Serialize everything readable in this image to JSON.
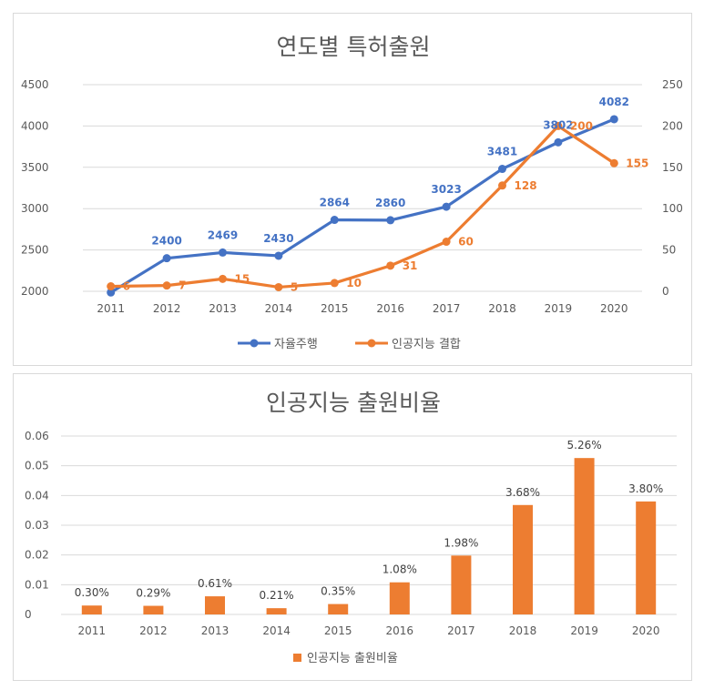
{
  "colors": {
    "blue": "#4472C4",
    "orange": "#ED7D31",
    "grid": "#d9d9d9",
    "text": "#595959"
  },
  "chart_data": [
    {
      "type": "line",
      "title": "연도별 특허출원",
      "categories": [
        "2011",
        "2012",
        "2013",
        "2014",
        "2015",
        "2016",
        "2017",
        "2018",
        "2019",
        "2020"
      ],
      "left_axis": {
        "ylim": [
          2000,
          4500
        ],
        "ticks": [
          "2000",
          "2500",
          "3000",
          "3500",
          "4000",
          "4500"
        ]
      },
      "right_axis": {
        "ylim": [
          0,
          250
        ],
        "ticks": [
          "0",
          "50",
          "100",
          "150",
          "200",
          "250"
        ]
      },
      "series": [
        {
          "name": "자율주행",
          "axis": "left",
          "color": "#4472C4",
          "values": [
            1986,
            2400,
            2469,
            2430,
            2864,
            2860,
            3023,
            3481,
            3802,
            4082
          ],
          "labels": [
            "",
            "2400",
            "2469",
            "2430",
            "2864",
            "2860",
            "3023",
            "3481",
            "3802",
            "4082"
          ]
        },
        {
          "name": "인공지능 결합",
          "axis": "right",
          "color": "#ED7D31",
          "values": [
            6,
            7,
            15,
            5,
            10,
            31,
            60,
            128,
            200,
            155
          ],
          "labels": [
            "6",
            "7",
            "15",
            "5",
            "10",
            "31",
            "60",
            "128",
            "200",
            "155"
          ]
        }
      ],
      "legend": "bottom"
    },
    {
      "type": "bar",
      "title": "인공지능 출원비율",
      "categories": [
        "2011",
        "2012",
        "2013",
        "2014",
        "2015",
        "2016",
        "2017",
        "2018",
        "2019",
        "2020"
      ],
      "values": [
        0.003,
        0.0029,
        0.0061,
        0.0021,
        0.0035,
        0.0108,
        0.0198,
        0.0368,
        0.0526,
        0.038
      ],
      "labels": [
        "0.30%",
        "0.29%",
        "0.61%",
        "0.21%",
        "0.35%",
        "1.08%",
        "1.98%",
        "3.68%",
        "5.26%",
        "3.80%"
      ],
      "ylim": [
        0,
        0.06
      ],
      "ticks": [
        "0",
        "0.01",
        "0.02",
        "0.03",
        "0.04",
        "0.05",
        "0.06"
      ],
      "series_name": "인공지능 출원비율",
      "color": "#ED7D31",
      "legend": "bottom"
    }
  ]
}
